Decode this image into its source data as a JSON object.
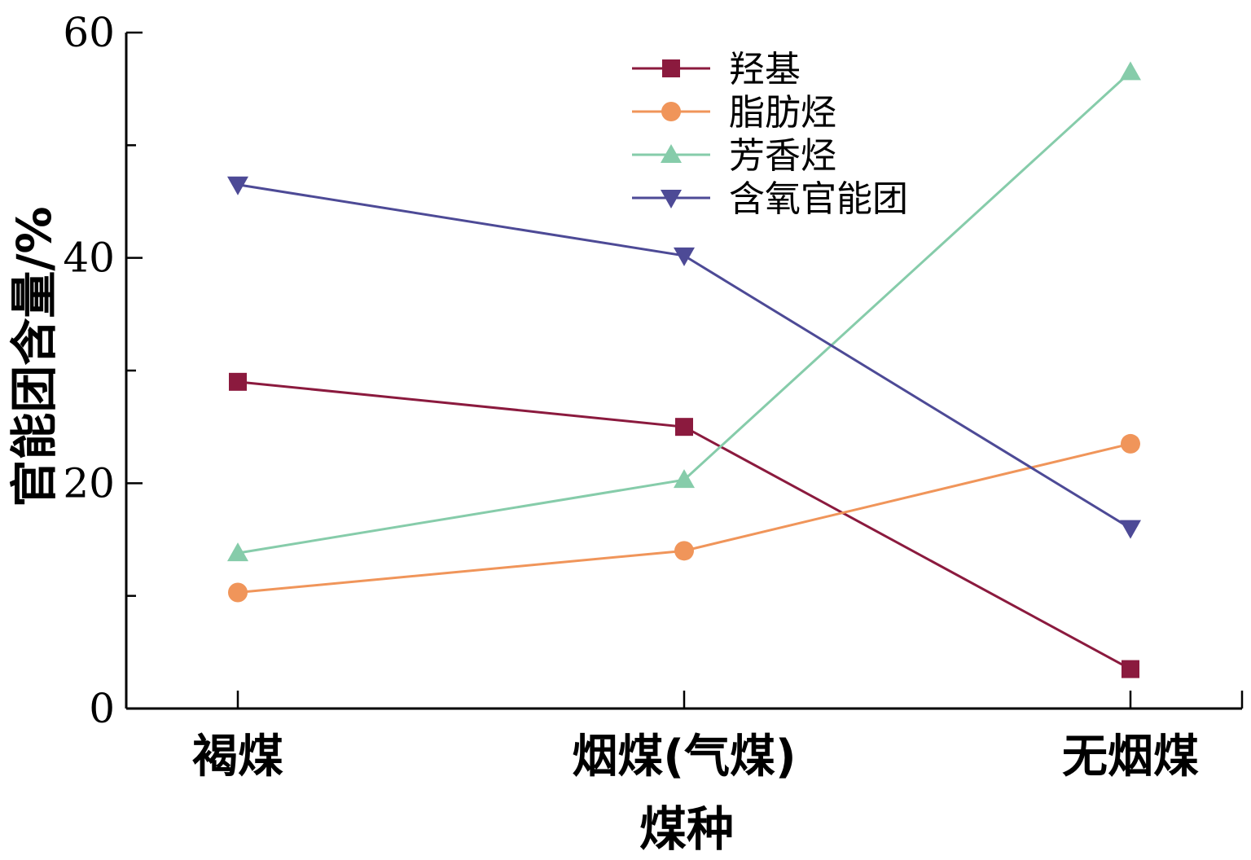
{
  "chart_data": {
    "type": "line",
    "title": "",
    "xlabel": "煤种",
    "ylabel": "官能团含量/%",
    "categories": [
      "褐煤",
      "烟煤(气煤)",
      "无烟煤"
    ],
    "ylim": [
      0,
      60
    ],
    "yticks": [
      0,
      20,
      40,
      60
    ],
    "grid": false,
    "legend_position": "top-center",
    "series": [
      {
        "name": "羟基",
        "color": "#8b1a3e",
        "marker": "square",
        "values": [
          29,
          25,
          3.5
        ]
      },
      {
        "name": "脂肪烃",
        "color": "#f0955a",
        "marker": "circle",
        "values": [
          10.3,
          14,
          23.5
        ]
      },
      {
        "name": "芳香烃",
        "color": "#86ccaa",
        "marker": "triangle-up",
        "values": [
          13.8,
          20.3,
          56.5
        ]
      },
      {
        "name": "含氧官能团",
        "color": "#4d4a96",
        "marker": "triangle-down",
        "values": [
          46.5,
          40.2,
          16
        ]
      }
    ]
  }
}
